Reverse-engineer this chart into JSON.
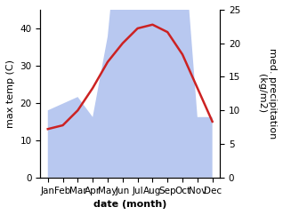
{
  "months": [
    "Jan",
    "Feb",
    "Mar",
    "Apr",
    "May",
    "Jun",
    "Jul",
    "Aug",
    "Sep",
    "Oct",
    "Nov",
    "Dec"
  ],
  "month_indices": [
    1,
    2,
    3,
    4,
    5,
    6,
    7,
    8,
    9,
    10,
    11,
    12
  ],
  "temp": [
    13,
    14,
    18,
    24,
    31,
    36,
    40,
    41,
    39,
    33,
    24,
    15
  ],
  "precip": [
    10,
    11,
    12,
    9,
    21,
    44,
    43,
    42,
    42,
    38,
    9,
    9
  ],
  "temp_color": "#cc2222",
  "precip_color": "#b8c8f0",
  "ylim_left": [
    0,
    45
  ],
  "ylim_right": [
    0,
    25
  ],
  "ylabel_left": "max temp (C)",
  "ylabel_right": "med. precipitation\n(kg/m2)",
  "xlabel": "date (month)",
  "label_fontsize": 8,
  "tick_fontsize": 7.5,
  "right_tick_values": [
    0,
    5,
    10,
    15,
    20,
    25
  ],
  "left_tick_values": [
    0,
    10,
    20,
    30,
    40
  ],
  "xlim": [
    0.5,
    12.5
  ]
}
